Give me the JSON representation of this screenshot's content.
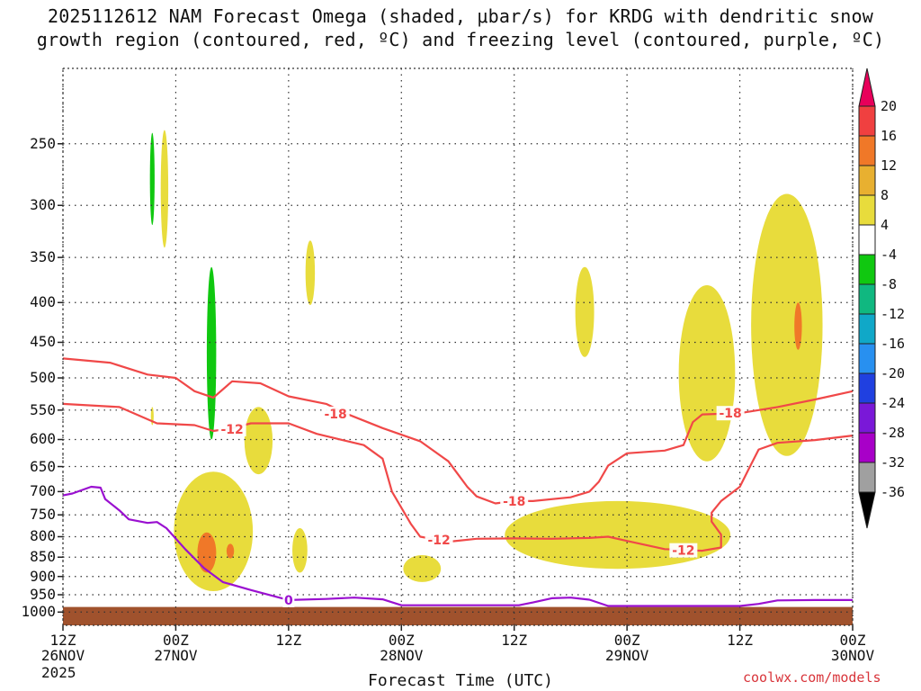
{
  "title": {
    "line1": "2025112612 NAM Forecast Omega (shaded, μbar/s) for KRDG with dendritic snow",
    "line2": "growth region (contoured, red, ºC) and freezing level (contoured, purple, ºC)"
  },
  "credit": "coolwx.com/models",
  "chart_data": {
    "type": "time-height cross section",
    "title": "2025112612 NAM Forecast Omega (shaded, μbar/s) for KRDG with dendritic snow growth region (contoured, red, ºC) and freezing level (contoured, purple, ºC)",
    "xlabel": "Forecast Time (UTC)",
    "ylabel": "",
    "x_range_hours": [
      0,
      84
    ],
    "y_range_hpa": [
      200,
      1040
    ],
    "y_scale": "log-pressure (inverted)",
    "y_ticks": [
      250,
      300,
      350,
      400,
      450,
      500,
      550,
      600,
      650,
      700,
      750,
      800,
      850,
      900,
      950,
      1000
    ],
    "x_ticks": [
      {
        "hour": 0,
        "line1": "12Z",
        "line2": "26NOV",
        "line3": "2025"
      },
      {
        "hour": 12,
        "line1": "00Z",
        "line2": "27NOV",
        "line3": ""
      },
      {
        "hour": 24,
        "line1": "12Z",
        "line2": "",
        "line3": ""
      },
      {
        "hour": 36,
        "line1": "00Z",
        "line2": "28NOV",
        "line3": ""
      },
      {
        "hour": 48,
        "line1": "12Z",
        "line2": "",
        "line3": ""
      },
      {
        "hour": 60,
        "line1": "00Z",
        "line2": "29NOV",
        "line3": ""
      },
      {
        "hour": 72,
        "line1": "12Z",
        "line2": "",
        "line3": ""
      },
      {
        "hour": 84,
        "line1": "00Z",
        "line2": "30NOV",
        "line3": ""
      }
    ],
    "grid": true,
    "colorbar": {
      "labels": [
        "20",
        "16",
        "12",
        "8",
        "4",
        "-4",
        "-8",
        "-12",
        "-16",
        "-20",
        "-24",
        "-28",
        "-32",
        "-36"
      ],
      "colors": [
        "#e8005a",
        "#f04040",
        "#f07828",
        "#e8b030",
        "#e8dc3c",
        "#ffffff",
        "#10c810",
        "#10b880",
        "#10a8c8",
        "#2890f0",
        "#2040e0",
        "#7a18d8",
        "#a800c8",
        "#a0a0a0",
        "#000000"
      ]
    },
    "contours": [
      {
        "name": "-12C (red)",
        "label": "-12",
        "color": "#f04848",
        "points": [
          [
            0,
            540
          ],
          [
            6,
            545
          ],
          [
            10,
            572
          ],
          [
            14,
            575
          ],
          [
            16,
            585
          ],
          [
            18,
            580
          ],
          [
            20,
            572
          ],
          [
            24,
            572
          ],
          [
            27,
            590
          ],
          [
            32,
            610
          ],
          [
            34,
            635
          ],
          [
            35,
            700
          ],
          [
            37,
            770
          ],
          [
            38,
            800
          ],
          [
            40,
            808
          ],
          [
            41,
            812
          ],
          [
            44,
            805
          ],
          [
            48,
            804
          ],
          [
            52,
            805
          ],
          [
            56,
            803
          ],
          [
            58,
            800
          ],
          [
            60,
            810
          ],
          [
            64,
            830
          ],
          [
            68,
            834
          ],
          [
            70,
            826
          ],
          [
            70,
            795
          ],
          [
            69,
            765
          ],
          [
            69,
            745
          ],
          [
            70,
            720
          ],
          [
            71,
            705
          ],
          [
            72,
            690
          ],
          [
            73,
            653
          ],
          [
            74,
            618
          ],
          [
            76,
            606
          ],
          [
            80,
            601
          ],
          [
            84,
            593
          ]
        ]
      },
      {
        "name": "-18C (red)",
        "label": "-18",
        "color": "#f04848",
        "points": [
          [
            0,
            472
          ],
          [
            5,
            478
          ],
          [
            9,
            495
          ],
          [
            12,
            500
          ],
          [
            14,
            520
          ],
          [
            16,
            530
          ],
          [
            18,
            505
          ],
          [
            21,
            508
          ],
          [
            24,
            528
          ],
          [
            28,
            540
          ],
          [
            30,
            555
          ],
          [
            34,
            580
          ],
          [
            38,
            603
          ],
          [
            41,
            640
          ],
          [
            43,
            690
          ],
          [
            44,
            710
          ],
          [
            46,
            725
          ],
          [
            48,
            720
          ],
          [
            50,
            720
          ],
          [
            54,
            712
          ],
          [
            56,
            700
          ],
          [
            57,
            680
          ],
          [
            58,
            648
          ],
          [
            60,
            625
          ],
          [
            64,
            620
          ],
          [
            66,
            610
          ],
          [
            67,
            570
          ],
          [
            68,
            557
          ],
          [
            72,
            555
          ],
          [
            76,
            545
          ],
          [
            80,
            533
          ],
          [
            84,
            520
          ]
        ]
      },
      {
        "name": "0C freezing level (purple)",
        "label": "0",
        "color": "#9a10d0",
        "points": [
          [
            0,
            708
          ],
          [
            1,
            704
          ],
          [
            3,
            690
          ],
          [
            4,
            692
          ],
          [
            4.5,
            716
          ],
          [
            6,
            740
          ],
          [
            7,
            760
          ],
          [
            9,
            768
          ],
          [
            10,
            766
          ],
          [
            11,
            780
          ],
          [
            13,
            830
          ],
          [
            15,
            878
          ],
          [
            17,
            915
          ],
          [
            20,
            937
          ],
          [
            24,
            965
          ],
          [
            28,
            962
          ],
          [
            31,
            958
          ],
          [
            34,
            963
          ],
          [
            36,
            980
          ],
          [
            48.5,
            980
          ],
          [
            50,
            972
          ],
          [
            52,
            960
          ],
          [
            54,
            958
          ],
          [
            56,
            964
          ],
          [
            58,
            982
          ],
          [
            72,
            982
          ],
          [
            74,
            976
          ],
          [
            76,
            966
          ],
          [
            80,
            965
          ],
          [
            84,
            965
          ]
        ]
      }
    ],
    "omega_regions": [
      {
        "value": -8,
        "color": "#10c810",
        "center": {
          "hour": 9.5,
          "hpa": 280
        },
        "half_width_hours": 0.25,
        "half_height_hpa": 38
      },
      {
        "value": -8,
        "color": "#10c810",
        "center": {
          "hour": 15.8,
          "hpa": 480
        },
        "half_width_hours": 0.5,
        "half_height_hpa": 120
      },
      {
        "value": 4,
        "color": "#e8dc3c",
        "center": {
          "hour": 10.8,
          "hpa": 290
        },
        "half_width_hours": 0.4,
        "half_height_hpa": 50
      },
      {
        "value": 4,
        "color": "#e8dc3c",
        "center": {
          "hour": 9.5,
          "hpa": 560
        },
        "half_width_hours": 0.15,
        "half_height_hpa": 15
      },
      {
        "value": 4,
        "color": "#e8dc3c",
        "center": {
          "hour": 26.3,
          "hpa": 368
        },
        "half_width_hours": 0.5,
        "half_height_hpa": 35
      },
      {
        "value": 4,
        "color": "#e8dc3c",
        "center": {
          "hour": 20.8,
          "hpa": 605
        },
        "half_width_hours": 1.5,
        "half_height_hpa": 60
      },
      {
        "value": 4,
        "color": "#e8dc3c",
        "center": {
          "hour": 16,
          "hpa": 800
        },
        "half_width_hours": 4.2,
        "half_height_hpa": 140
      },
      {
        "value": 4,
        "color": "#e8dc3c",
        "center": {
          "hour": 25.2,
          "hpa": 835
        },
        "half_width_hours": 0.8,
        "half_height_hpa": 55
      },
      {
        "value": 4,
        "color": "#e8dc3c",
        "center": {
          "hour": 38.2,
          "hpa": 880
        },
        "half_width_hours": 2,
        "half_height_hpa": 35
      },
      {
        "value": 4,
        "color": "#e8dc3c",
        "center": {
          "hour": 55.5,
          "hpa": 415
        },
        "half_width_hours": 1,
        "half_height_hpa": 55
      },
      {
        "value": 4,
        "color": "#e8dc3c",
        "center": {
          "hour": 59,
          "hpa": 800
        },
        "half_width_hours": 12,
        "half_height_hpa": 80
      },
      {
        "value": 4,
        "color": "#e8dc3c",
        "center": {
          "hour": 68.5,
          "hpa": 510
        },
        "half_width_hours": 3,
        "half_height_hpa": 130
      },
      {
        "value": 4,
        "color": "#e8dc3c",
        "center": {
          "hour": 77,
          "hpa": 460
        },
        "half_width_hours": 3.8,
        "half_height_hpa": 170
      },
      {
        "value": 12,
        "color": "#f07828",
        "center": {
          "hour": 15.3,
          "hpa": 840
        },
        "half_width_hours": 1,
        "half_height_hpa": 50
      },
      {
        "value": 12,
        "color": "#f07828",
        "center": {
          "hour": 17.8,
          "hpa": 835
        },
        "half_width_hours": 0.4,
        "half_height_hpa": 18
      },
      {
        "value": 12,
        "color": "#f07828",
        "center": {
          "hour": 78.2,
          "hpa": 430
        },
        "half_width_hours": 0.4,
        "half_height_hpa": 30
      }
    ],
    "terrain": {
      "color": "#a0522d",
      "top_hpa": 985
    }
  }
}
